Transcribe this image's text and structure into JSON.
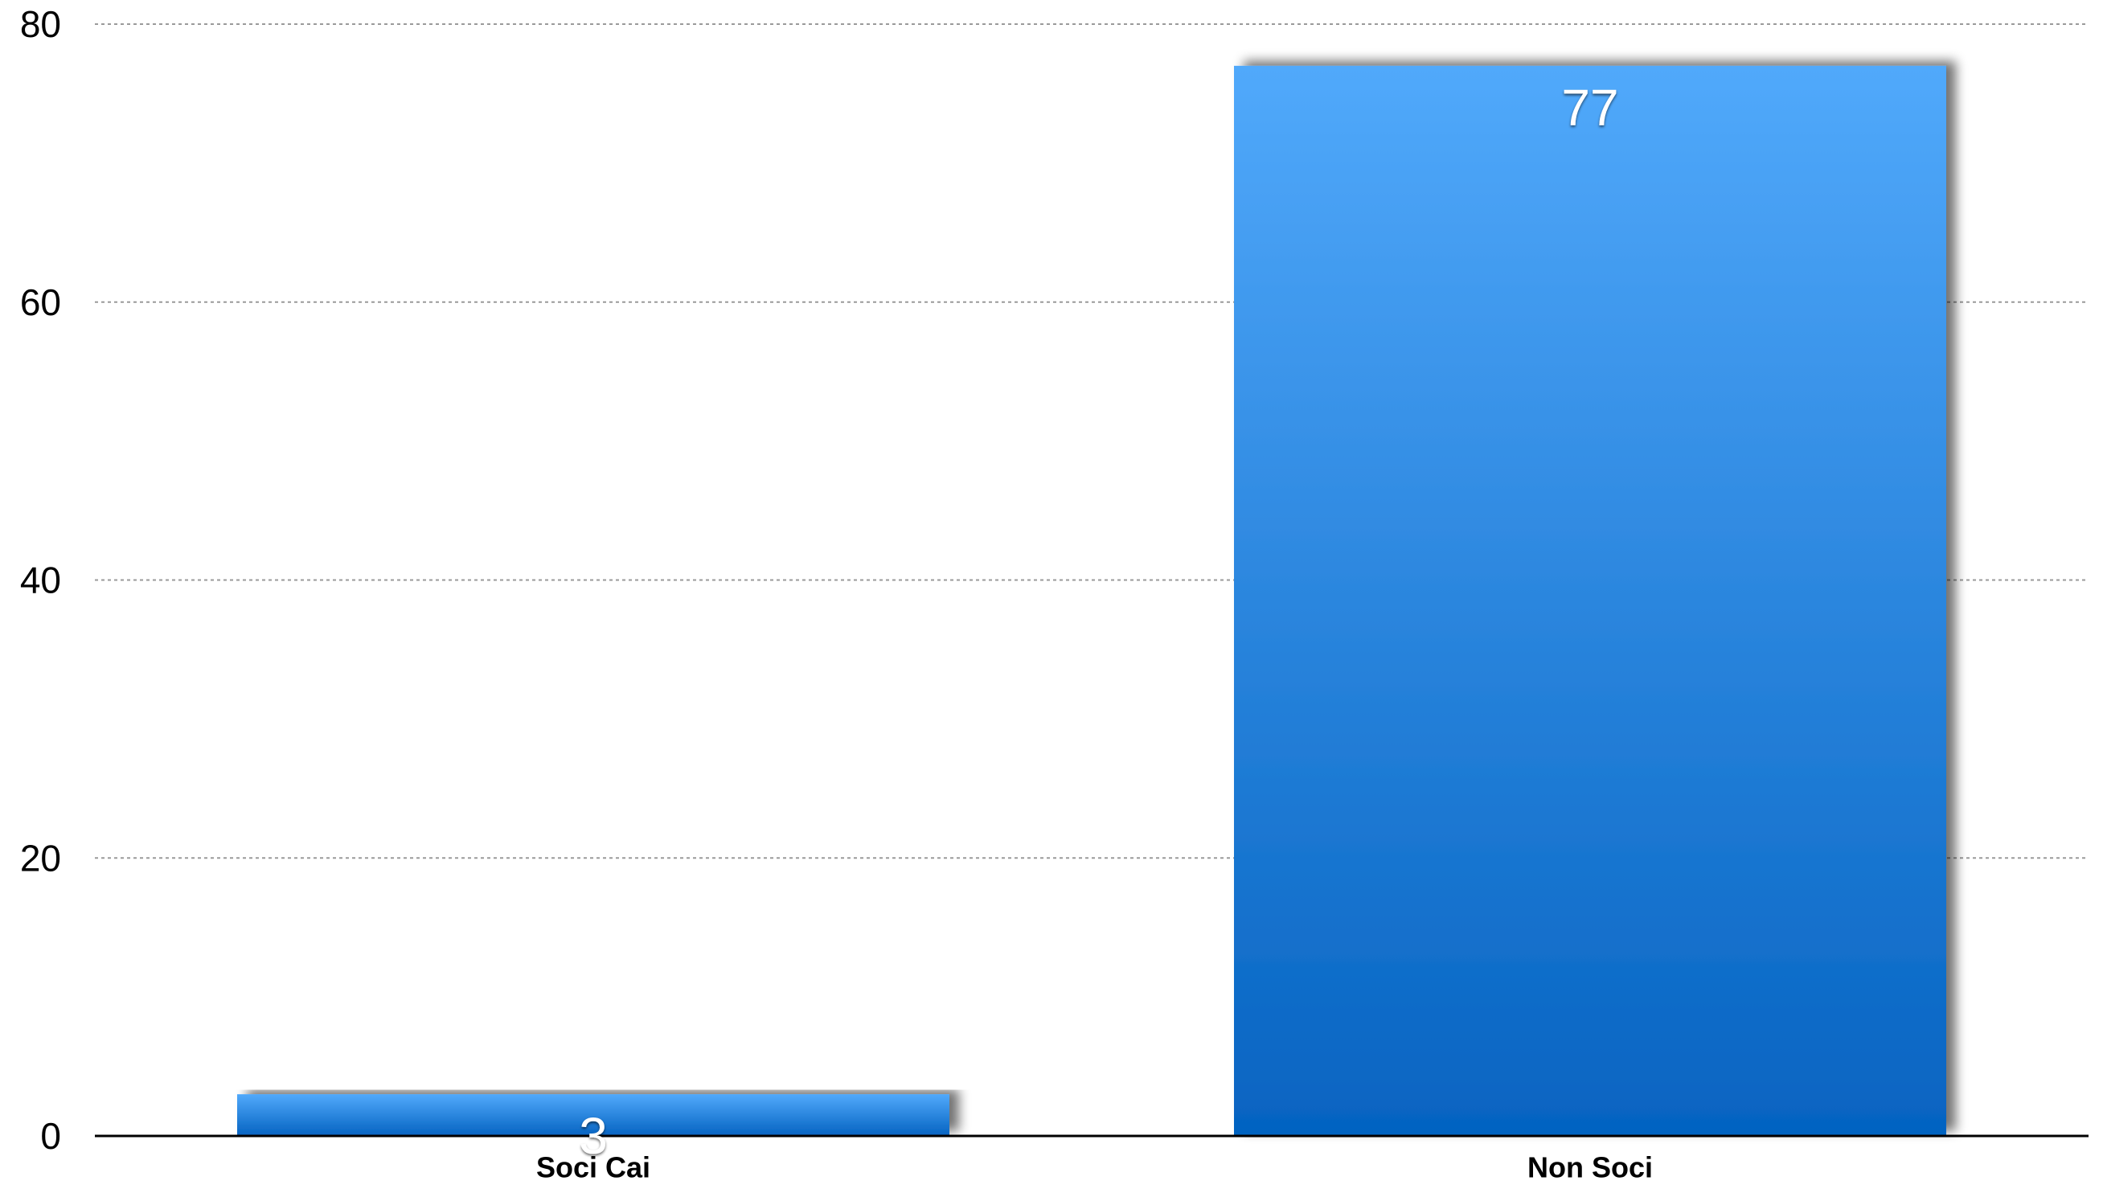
{
  "chart_data": {
    "type": "bar",
    "title": "",
    "xlabel": "",
    "ylabel": "",
    "categories": [
      "Soci Cai",
      "Non Soci"
    ],
    "values": [
      3,
      77
    ],
    "value_labels": [
      "3",
      "77"
    ],
    "ylim": [
      0,
      80
    ],
    "yticks": [
      0,
      20,
      40,
      60,
      80
    ],
    "ytick_labels": [
      "0",
      "20",
      "40",
      "60",
      "80"
    ],
    "grid": true,
    "legend": "none",
    "colors": {
      "bar_top": "#51a9fb",
      "bar_bottom": "#0563c1",
      "grid": "#9a9a9a",
      "axis": "#000000",
      "value_label": "#ffffff"
    }
  }
}
